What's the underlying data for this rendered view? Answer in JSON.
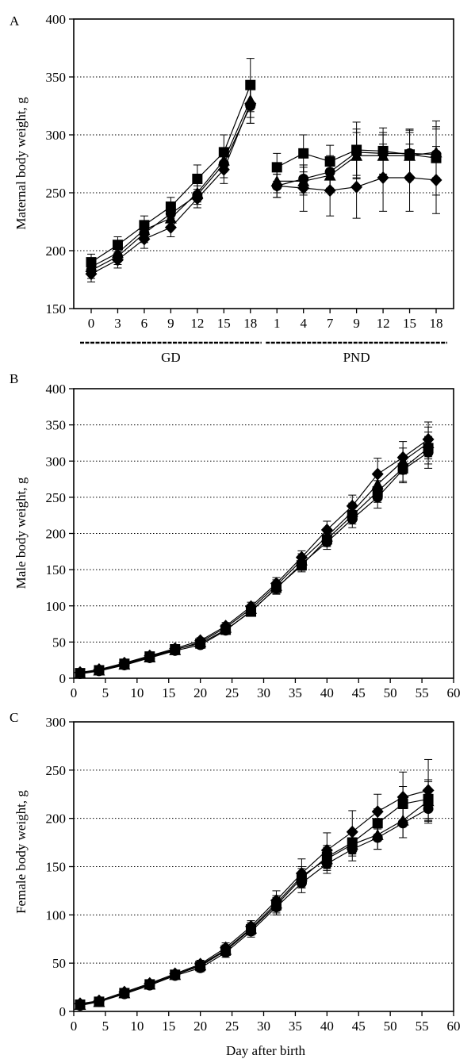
{
  "chart_data": [
    {
      "panel": "A",
      "type": "line",
      "ylabel": "Maternal body weight, g",
      "ylim": [
        150,
        400
      ],
      "yticks": [
        150,
        200,
        250,
        300,
        350,
        400
      ],
      "grid": "horizontal-dotted",
      "categories": [
        "0",
        "3",
        "6",
        "9",
        "12",
        "15",
        "18",
        "1",
        "4",
        "7",
        "9",
        "12",
        "15",
        "18"
      ],
      "groups": [
        {
          "label": "GD",
          "categories": [
            "0",
            "3",
            "6",
            "9",
            "12",
            "15",
            "18"
          ]
        },
        {
          "label": "PND",
          "categories": [
            "1",
            "4",
            "7",
            "9",
            "12",
            "15",
            "18"
          ]
        }
      ],
      "series": [
        {
          "marker": "square",
          "values": [
            190,
            205,
            222,
            238,
            262,
            285,
            343,
            272,
            284,
            277,
            287,
            286,
            283,
            280
          ],
          "err": [
            7,
            7,
            8,
            8,
            12,
            15,
            23,
            12,
            16,
            14,
            24,
            20,
            22,
            32
          ],
          "split_after": 6
        },
        {
          "marker": "circle",
          "values": [
            183,
            195,
            215,
            232,
            248,
            275,
            325,
            256,
            262,
            268,
            285,
            284,
            284,
            283
          ],
          "err": [
            7,
            7,
            8,
            8,
            8,
            12,
            15,
            10,
            12,
            14,
            20,
            18,
            20,
            22
          ],
          "split_after": 6
        },
        {
          "marker": "triangle",
          "values": [
            186,
            198,
            218,
            228,
            250,
            278,
            330,
            260,
            260,
            265,
            282,
            282,
            282,
            285
          ],
          "err": [
            7,
            7,
            8,
            8,
            8,
            10,
            15,
            10,
            12,
            14,
            20,
            18,
            20,
            22
          ],
          "split_after": 6
        },
        {
          "marker": "diamond",
          "values": [
            180,
            192,
            210,
            220,
            245,
            270,
            327,
            256,
            254,
            252,
            255,
            263,
            263,
            261
          ],
          "err": [
            7,
            7,
            8,
            8,
            8,
            12,
            17,
            10,
            20,
            22,
            27,
            29,
            29,
            29
          ],
          "split_after": 6
        }
      ]
    },
    {
      "panel": "B",
      "type": "line",
      "ylabel": "Male body weight, g",
      "xlim": [
        0,
        60
      ],
      "xticks": [
        0,
        5,
        10,
        15,
        20,
        25,
        30,
        35,
        40,
        45,
        50,
        55,
        60
      ],
      "ylim": [
        0,
        400
      ],
      "yticks": [
        0,
        50,
        100,
        150,
        200,
        250,
        300,
        350,
        400
      ],
      "grid": "horizontal-dotted",
      "x": [
        1,
        4,
        8,
        12,
        16,
        20,
        24,
        28,
        32,
        36,
        40,
        44,
        48,
        52,
        56
      ],
      "series": [
        {
          "marker": "square",
          "values": [
            7,
            11,
            20,
            30,
            40,
            48,
            67,
            92,
            125,
            156,
            192,
            225,
            258,
            290,
            318
          ],
          "err": [
            1,
            1,
            2,
            2,
            3,
            4,
            5,
            6,
            8,
            9,
            10,
            12,
            15,
            18,
            22
          ]
        },
        {
          "marker": "circle",
          "values": [
            6,
            10,
            18,
            28,
            38,
            46,
            66,
            93,
            124,
            158,
            188,
            220,
            250,
            288,
            312
          ],
          "err": [
            1,
            1,
            2,
            2,
            3,
            4,
            5,
            6,
            8,
            9,
            10,
            12,
            15,
            18,
            22
          ]
        },
        {
          "marker": "triangle",
          "values": [
            7,
            11,
            19,
            29,
            39,
            50,
            70,
            96,
            128,
            163,
            196,
            230,
            268,
            300,
            325
          ],
          "err": [
            1,
            1,
            2,
            2,
            3,
            4,
            5,
            6,
            8,
            9,
            10,
            12,
            15,
            18,
            22
          ]
        },
        {
          "marker": "diamond",
          "values": [
            8,
            12,
            21,
            31,
            41,
            52,
            72,
            99,
            131,
            167,
            205,
            238,
            282,
            305,
            330
          ],
          "err": [
            1,
            1,
            2,
            2,
            3,
            4,
            5,
            6,
            8,
            9,
            12,
            15,
            22,
            22,
            24
          ]
        }
      ]
    },
    {
      "panel": "C",
      "type": "line",
      "ylabel": "Female body weight, g",
      "xlabel": "Day after birth",
      "xlim": [
        0,
        60
      ],
      "xticks": [
        0,
        5,
        10,
        15,
        20,
        25,
        30,
        35,
        40,
        45,
        50,
        55,
        60
      ],
      "ylim": [
        0,
        300
      ],
      "yticks": [
        0,
        50,
        100,
        150,
        200,
        250,
        300
      ],
      "grid": "horizontal-dotted",
      "x": [
        1,
        4,
        8,
        12,
        16,
        20,
        24,
        28,
        32,
        36,
        40,
        44,
        48,
        52,
        56
      ],
      "series": [
        {
          "marker": "square",
          "values": [
            7,
            10,
            19,
            28,
            38,
            47,
            63,
            85,
            110,
            138,
            160,
            175,
            195,
            215,
            220
          ],
          "err": [
            1,
            1,
            2,
            2,
            3,
            4,
            5,
            6,
            8,
            10,
            12,
            12,
            15,
            18,
            20
          ]
        },
        {
          "marker": "circle",
          "values": [
            6,
            10,
            18,
            27,
            37,
            45,
            61,
            83,
            108,
            133,
            153,
            168,
            180,
            195,
            210
          ],
          "err": [
            1,
            1,
            2,
            2,
            3,
            4,
            5,
            6,
            8,
            10,
            10,
            12,
            12,
            15,
            15
          ]
        },
        {
          "marker": "triangle",
          "values": [
            7,
            10,
            19,
            28,
            38,
            48,
            64,
            86,
            112,
            140,
            158,
            173,
            183,
            198,
            218
          ],
          "err": [
            1,
            1,
            2,
            2,
            3,
            4,
            5,
            6,
            8,
            10,
            12,
            12,
            15,
            18,
            20
          ]
        },
        {
          "marker": "diamond",
          "values": [
            8,
            11,
            20,
            29,
            39,
            49,
            66,
            88,
            115,
            143,
            167,
            186,
            207,
            222,
            229
          ],
          "err": [
            1,
            1,
            2,
            2,
            3,
            4,
            5,
            6,
            10,
            15,
            18,
            22,
            18,
            26,
            32
          ]
        }
      ]
    }
  ]
}
